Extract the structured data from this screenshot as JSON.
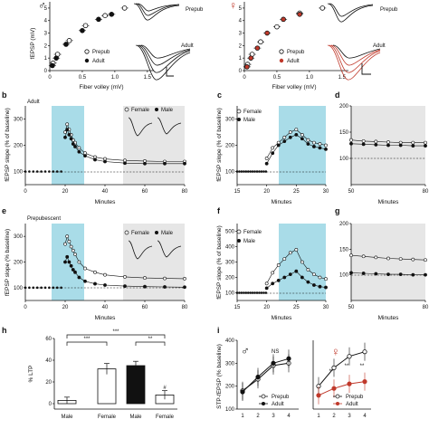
{
  "panels": {
    "a_left": {
      "symbol": "♂",
      "ylabel": "fEPSP (mV)",
      "xlabel": "Fiber volley (mV)",
      "yticks": [
        "0",
        "1",
        "2",
        "3",
        "4",
        "5"
      ],
      "xticks": [
        "0",
        "0.5",
        "1.0",
        "1.5"
      ],
      "legend": [
        "Prepub",
        "Adult"
      ],
      "trace_labels": [
        "Prepub",
        "Adult"
      ]
    },
    "a_right": {
      "symbol": "♀",
      "yticks": [
        "0",
        "1",
        "2",
        "3",
        "4",
        "5"
      ],
      "xticks": [
        "0",
        "0.5",
        "1.0",
        "1.5"
      ],
      "xlabel": "Fiber volley (mV)",
      "legend": [
        "Prepub",
        "Adult"
      ],
      "trace_labels": [
        "Prepub",
        "Adult"
      ]
    },
    "b": {
      "letter": "b",
      "title": "Adult",
      "ylabel": "fEPSP slope (% of baseline)",
      "xlabel": "Minutes",
      "yticks": [
        "100",
        "200",
        "300"
      ],
      "xticks": [
        "0",
        "20",
        "40",
        "60",
        "80"
      ],
      "legend": [
        "Female",
        "Male"
      ]
    },
    "c": {
      "letter": "c",
      "ylabel": "fEPSP slope (% of baseline)",
      "xlabel": "Minutes",
      "yticks": [
        "100",
        "200",
        "300"
      ],
      "xticks": [
        "15",
        "20",
        "25",
        "30"
      ],
      "legend": [
        "Female",
        "Male"
      ]
    },
    "d": {
      "letter": "d",
      "xlabel": "Minutes",
      "yticks": [
        "100",
        "150",
        "200"
      ],
      "xticks": [
        "50",
        "80"
      ]
    },
    "e": {
      "letter": "e",
      "title": "Prepubescent",
      "ylabel": "fEPSP slope (% baseline)",
      "xlabel": "Minutes",
      "yticks": [
        "100",
        "200",
        "300"
      ],
      "xticks": [
        "0",
        "20",
        "40",
        "60",
        "80"
      ],
      "legend": [
        "Female",
        "Male"
      ]
    },
    "f": {
      "letter": "f",
      "ylabel": "fEPSP slope (% of baseline)",
      "xlabel": "Minutes",
      "yticks": [
        "100",
        "200",
        "300",
        "400",
        "500"
      ],
      "xticks": [
        "15",
        "20",
        "25",
        "30"
      ],
      "legend": [
        "Female",
        "Male"
      ]
    },
    "g": {
      "letter": "g",
      "xlabel": "Minutes",
      "yticks": [
        "100",
        "150",
        "200"
      ],
      "xticks": [
        "50",
        "80"
      ]
    },
    "h": {
      "letter": "h",
      "ylabel": "% LTP",
      "yticks": [
        "0",
        "20",
        "40",
        "60"
      ],
      "xticks": [
        "Male",
        "Female",
        "Male",
        "Female"
      ],
      "stars": [
        "***",
        "***",
        "**"
      ],
      "hash": "#"
    },
    "i": {
      "letter": "i",
      "symbol_male": "♂",
      "symbol_female": "♀",
      "ns": "NS",
      "ylabel": "STP-fEPSP (% baseline)",
      "yticks": [
        "100",
        "200",
        "300",
        "400"
      ],
      "xticks": [
        "1",
        "2",
        "3",
        "4"
      ],
      "legend": [
        "Prepub",
        "Adult"
      ],
      "stars": [
        "**",
        "**",
        "**"
      ]
    }
  },
  "chart_data": [
    {
      "type": "scatter",
      "panel": "a_left",
      "series": [
        {
          "name": "Prepub",
          "x": [
            0.05,
            0.12,
            0.3,
            0.55,
            0.85,
            1.15
          ],
          "y": [
            0.6,
            1.3,
            2.4,
            3.6,
            4.4,
            5.0
          ]
        },
        {
          "name": "Adult",
          "x": [
            0.04,
            0.1,
            0.25,
            0.5,
            0.75,
            0.95
          ],
          "y": [
            0.4,
            1.0,
            2.1,
            3.2,
            4.1,
            4.5
          ]
        }
      ],
      "xlim": [
        0,
        1.6
      ],
      "ylim": [
        0,
        5.5
      ]
    },
    {
      "type": "scatter",
      "panel": "a_right",
      "series": [
        {
          "name": "Prepub",
          "x": [
            0.05,
            0.12,
            0.25,
            0.5,
            0.85,
            1.2
          ],
          "y": [
            0.5,
            1.3,
            2.3,
            3.5,
            4.6,
            5.0
          ]
        },
        {
          "name": "Adult",
          "x": [
            0.04,
            0.1,
            0.2,
            0.35,
            0.6,
            0.85
          ],
          "y": [
            0.3,
            1.0,
            1.8,
            3.0,
            4.1,
            4.5
          ]
        }
      ],
      "xlim": [
        0,
        1.6
      ],
      "ylim": [
        0,
        5.5
      ]
    },
    {
      "type": "line",
      "panel": "b",
      "xlim": [
        0,
        80
      ],
      "ylim": [
        50,
        350
      ],
      "series": [
        {
          "name": "Female",
          "x": [
            20,
            21,
            22,
            23,
            24,
            25,
            27,
            30,
            35,
            40,
            50,
            60,
            70,
            80
          ],
          "y": [
            250,
            280,
            260,
            240,
            220,
            210,
            190,
            170,
            155,
            148,
            142,
            140,
            138,
            138
          ]
        },
        {
          "name": "Male",
          "x": [
            20,
            21,
            22,
            23,
            24,
            25,
            27,
            30,
            35,
            40,
            50,
            60,
            70,
            80
          ],
          "y": [
            230,
            260,
            240,
            225,
            205,
            195,
            175,
            160,
            145,
            138,
            132,
            130,
            130,
            130
          ]
        }
      ]
    },
    {
      "type": "line",
      "panel": "c",
      "xlim": [
        15,
        30
      ],
      "ylim": [
        50,
        350
      ],
      "series": [
        {
          "name": "Female",
          "x": [
            20,
            21,
            22,
            23,
            24,
            25,
            26,
            27,
            28,
            29,
            30
          ],
          "y": [
            150,
            190,
            210,
            230,
            250,
            260,
            240,
            220,
            210,
            205,
            200
          ]
        },
        {
          "name": "Male",
          "x": [
            20,
            21,
            22,
            23,
            24,
            25,
            26,
            27,
            28,
            29,
            30
          ],
          "y": [
            130,
            170,
            200,
            215,
            230,
            240,
            225,
            205,
            195,
            190,
            185
          ]
        }
      ]
    },
    {
      "type": "line",
      "panel": "d",
      "xlim": [
        50,
        80
      ],
      "ylim": [
        50,
        200
      ],
      "series": [
        {
          "name": "Female",
          "x": [
            50,
            55,
            60,
            65,
            70,
            75,
            80
          ],
          "y": [
            135,
            133,
            132,
            131,
            130,
            130,
            130
          ]
        },
        {
          "name": "Male",
          "x": [
            50,
            55,
            60,
            65,
            70,
            75,
            80
          ],
          "y": [
            128,
            127,
            126,
            125,
            125,
            124,
            124
          ]
        }
      ]
    },
    {
      "type": "line",
      "panel": "e",
      "xlim": [
        0,
        80
      ],
      "ylim": [
        50,
        350
      ],
      "series": [
        {
          "name": "Female",
          "x": [
            20,
            21,
            22,
            23,
            24,
            25,
            27,
            30,
            35,
            40,
            50,
            60,
            70,
            80
          ],
          "y": [
            270,
            300,
            280,
            260,
            245,
            230,
            200,
            175,
            160,
            150,
            142,
            138,
            136,
            135
          ]
        },
        {
          "name": "Male",
          "x": [
            20,
            21,
            22,
            23,
            24,
            25,
            27,
            30,
            35,
            40,
            50,
            60,
            70,
            80
          ],
          "y": [
            200,
            220,
            200,
            185,
            170,
            160,
            140,
            125,
            115,
            110,
            106,
            104,
            103,
            102
          ]
        }
      ]
    },
    {
      "type": "line",
      "panel": "f",
      "xlim": [
        15,
        30
      ],
      "ylim": [
        50,
        550
      ],
      "series": [
        {
          "name": "Female",
          "x": [
            20,
            21,
            22,
            23,
            24,
            25,
            26,
            27,
            28,
            29,
            30
          ],
          "y": [
            160,
            230,
            280,
            320,
            360,
            380,
            300,
            250,
            220,
            200,
            190
          ]
        },
        {
          "name": "Male",
          "x": [
            20,
            21,
            22,
            23,
            24,
            25,
            26,
            27,
            28,
            29,
            30
          ],
          "y": [
            130,
            160,
            180,
            200,
            220,
            240,
            200,
            170,
            150,
            140,
            135
          ]
        }
      ]
    },
    {
      "type": "line",
      "panel": "g",
      "xlim": [
        50,
        80
      ],
      "ylim": [
        50,
        200
      ],
      "series": [
        {
          "name": "Female",
          "x": [
            50,
            55,
            60,
            65,
            70,
            75,
            80
          ],
          "y": [
            138,
            136,
            134,
            132,
            131,
            130,
            129
          ]
        },
        {
          "name": "Male",
          "x": [
            50,
            55,
            60,
            65,
            70,
            75,
            80
          ],
          "y": [
            104,
            103,
            102,
            101,
            101,
            100,
            100
          ]
        }
      ]
    },
    {
      "type": "bar",
      "panel": "h",
      "categories": [
        "Male",
        "Female",
        "Male",
        "Female"
      ],
      "values": [
        3,
        32,
        35,
        8
      ],
      "errors": [
        3,
        5,
        4,
        4
      ],
      "ylim": [
        -5,
        60
      ],
      "bar_colors": [
        "#ffffff",
        "#ffffff",
        "#111111",
        "#ffffff"
      ]
    },
    {
      "type": "line",
      "panel": "i_male",
      "x": [
        1,
        2,
        3,
        4
      ],
      "ylim": [
        100,
        400
      ],
      "series": [
        {
          "name": "Prepub",
          "values": [
            180,
            230,
            290,
            300
          ]
        },
        {
          "name": "Adult",
          "values": [
            175,
            240,
            300,
            320
          ]
        }
      ]
    },
    {
      "type": "line",
      "panel": "i_female",
      "x": [
        1,
        2,
        3,
        4
      ],
      "ylim": [
        100,
        400
      ],
      "series": [
        {
          "name": "Prepub",
          "values": [
            200,
            280,
            330,
            350
          ]
        },
        {
          "name": "Adult",
          "values": [
            160,
            190,
            210,
            220
          ]
        }
      ]
    }
  ],
  "colors": {
    "cyan": "#a9dce8",
    "gray": "#e6e6e6",
    "red": "#c0392b",
    "black": "#111111"
  }
}
